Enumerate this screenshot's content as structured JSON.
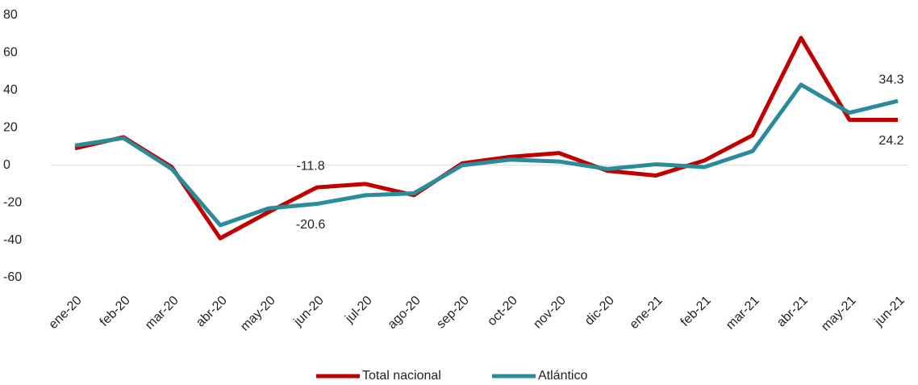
{
  "chart_data": {
    "type": "line",
    "categories": [
      "ene-20",
      "feb-20",
      "mar-20",
      "abr-20",
      "may-20",
      "jun-20",
      "jul-20",
      "ago-20",
      "sep-20",
      "oct-20",
      "nov-20",
      "dic-20",
      "ene-21",
      "feb-21",
      "mar-21",
      "abr-21",
      "may-21",
      "jun-21"
    ],
    "series": [
      {
        "name": "Total nacional",
        "color": "#c00000",
        "values": [
          9,
          15,
          -1,
          -39,
          -25,
          -11.8,
          -10,
          -16,
          1,
          4.5,
          6.5,
          -3,
          -5.5,
          2.5,
          16,
          68,
          24.2,
          24.2
        ],
        "value_labels": [
          null,
          null,
          null,
          null,
          null,
          "-11.8",
          null,
          null,
          null,
          null,
          null,
          null,
          null,
          null,
          null,
          null,
          null,
          "24.2"
        ]
      },
      {
        "name": "Atlántico",
        "color": "#2a8c9a",
        "values": [
          10.5,
          14.5,
          -2,
          -32,
          -23,
          -20.6,
          -16,
          -15,
          0,
          3,
          2,
          -2,
          0.5,
          -1,
          7.5,
          43,
          28,
          34.3
        ],
        "value_labels": [
          null,
          null,
          null,
          null,
          null,
          "-20.6",
          null,
          null,
          null,
          null,
          null,
          null,
          null,
          null,
          null,
          null,
          null,
          "34.3"
        ]
      }
    ],
    "ylim": [
      -60,
      80
    ],
    "yticks": [
      -60,
      -40,
      -20,
      0,
      20,
      40,
      60,
      80
    ],
    "grid": false,
    "legend": "bottom"
  }
}
